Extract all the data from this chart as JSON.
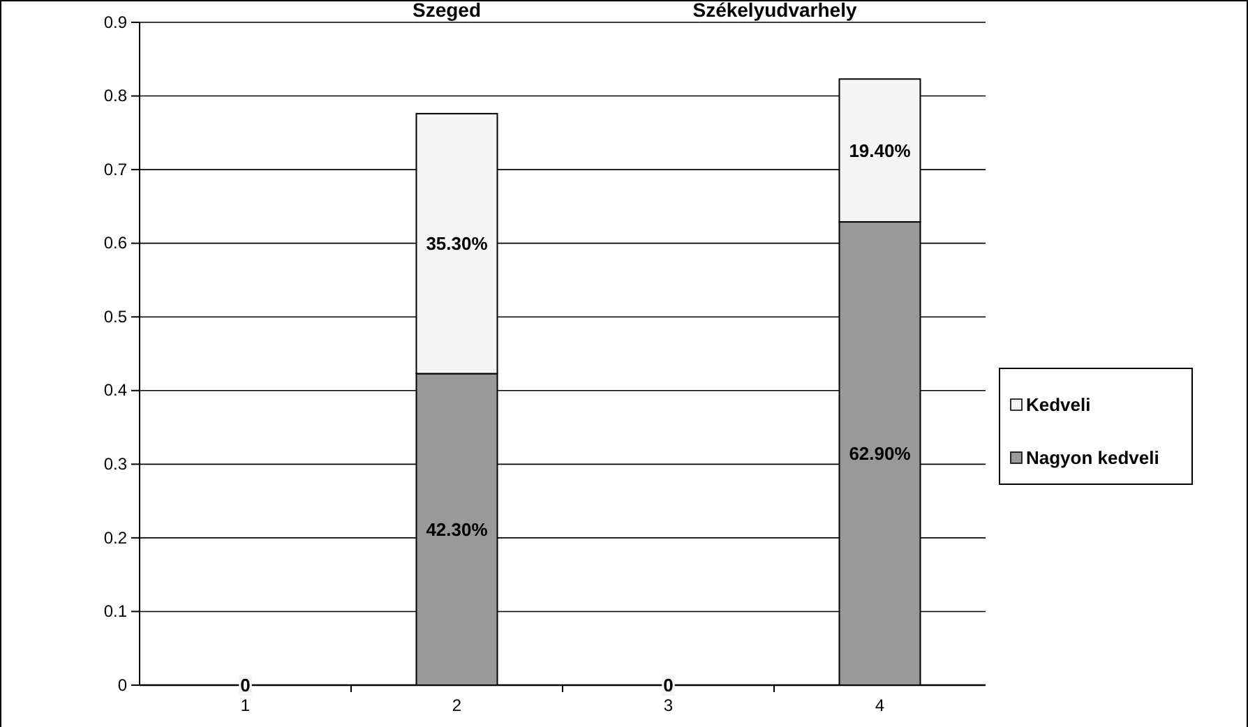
{
  "chart_data": {
    "type": "bar",
    "stacked": true,
    "categories": [
      "1",
      "2",
      "3",
      "4"
    ],
    "series": [
      {
        "name": "Nagyon kedveli",
        "color": "#999999",
        "values": [
          0,
          0.423,
          0,
          0.629
        ],
        "value_labels": [
          null,
          "42.30%",
          null,
          "62.90%"
        ]
      },
      {
        "name": "Kedveli",
        "color": "#f5f5f5",
        "values": [
          0,
          0.353,
          0,
          0.194
        ],
        "value_labels": [
          "0",
          "35.30%",
          "0",
          "19.40%"
        ]
      }
    ],
    "annotations": [
      "Szeged",
      "Székelyudvarhely"
    ],
    "ylim": [
      0,
      0.9
    ],
    "yticks": [
      0,
      0.1,
      0.2,
      0.3,
      0.4,
      0.5,
      0.6,
      0.7,
      0.8,
      0.9
    ],
    "grid": "y",
    "legend": "right"
  }
}
